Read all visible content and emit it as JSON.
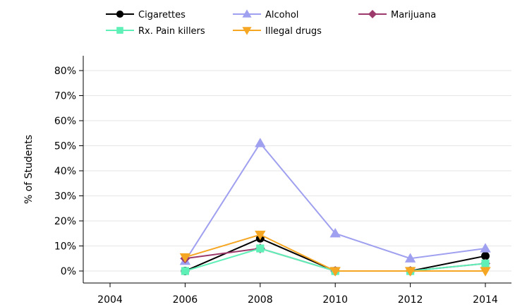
{
  "chart_data": {
    "type": "line",
    "title": "",
    "xlabel": "",
    "ylabel": "% of Students",
    "x": [
      2004,
      2006,
      2008,
      2010,
      2012,
      2014
    ],
    "x_tick_labels": [
      "2004",
      "2006",
      "2008",
      "2010",
      "2012",
      "2014"
    ],
    "ylim": [
      0,
      80
    ],
    "y_ticks": [
      0,
      10,
      20,
      30,
      40,
      50,
      60,
      70,
      80
    ],
    "y_tick_labels": [
      "0%",
      "10%",
      "20%",
      "30%",
      "40%",
      "50%",
      "60%",
      "70%",
      "80%"
    ],
    "grid": "horizontal",
    "legend_position": "top",
    "series": [
      {
        "name": "Cigarettes",
        "color": "#000000",
        "marker": "circle",
        "values": [
          null,
          0,
          13,
          0,
          0,
          6
        ]
      },
      {
        "name": "Alcohol",
        "color": "#a0a0f0",
        "marker": "triangle-up",
        "values": [
          null,
          4,
          51,
          15,
          5,
          9
        ]
      },
      {
        "name": "Marijuana",
        "color": "#9b3a6b",
        "marker": "diamond",
        "values": [
          null,
          5,
          9,
          0,
          0,
          3
        ]
      },
      {
        "name": "Rx. Pain killers",
        "color": "#5ff0b8",
        "marker": "square",
        "values": [
          null,
          0,
          9,
          0,
          0,
          3
        ]
      },
      {
        "name": "Illegal drugs",
        "color": "#f5a623",
        "marker": "triangle-down",
        "values": [
          null,
          5.5,
          14.5,
          0,
          0,
          0
        ]
      }
    ]
  }
}
